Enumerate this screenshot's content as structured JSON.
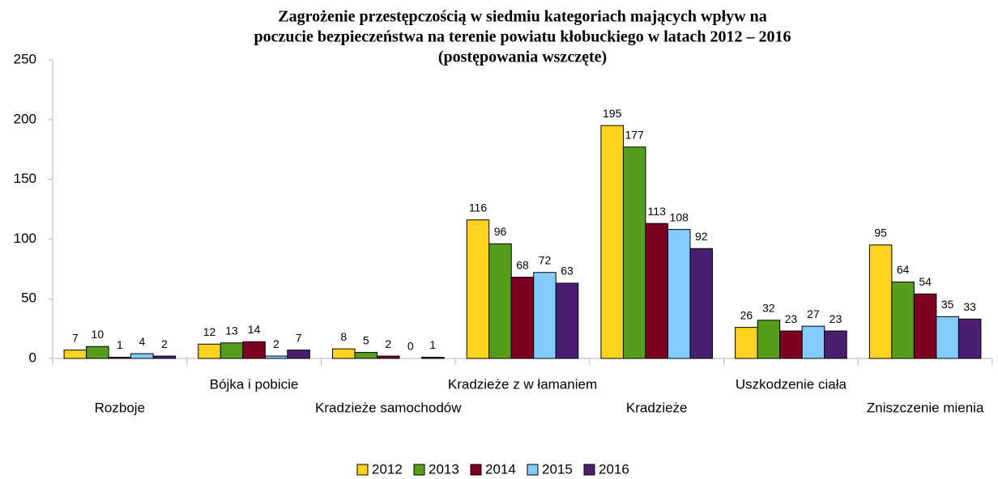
{
  "chart_data": {
    "type": "bar",
    "title": [
      "Zagrożenie przestępczością w siedmiu kategoriach mających wpływ na",
      "poczucie bezpieczeństwa na terenie powiatu kłobuckiego w latach 2012 – 2016",
      "(postępowania wszczęte)"
    ],
    "categories": [
      "Rozboje",
      "Bójka i pobicie",
      "Kradzieże samochodów",
      "Kradzieże z w łamaniem",
      "Kradzieże",
      "Uszkodzenie ciała",
      "Zniszczenie mienia"
    ],
    "series": [
      {
        "name": "2012",
        "color": "#ffd320",
        "values": [
          7,
          12,
          8,
          116,
          195,
          26,
          95
        ]
      },
      {
        "name": "2013",
        "color": "#579d1c",
        "values": [
          10,
          13,
          5,
          96,
          177,
          32,
          64
        ]
      },
      {
        "name": "2014",
        "color": "#7e0021",
        "values": [
          1,
          14,
          2,
          68,
          113,
          23,
          54
        ]
      },
      {
        "name": "2015",
        "color": "#83caff",
        "values": [
          4,
          2,
          0,
          72,
          108,
          27,
          35
        ]
      },
      {
        "name": "2016",
        "color": "#4b1f6f",
        "values": [
          2,
          7,
          1,
          63,
          92,
          23,
          33
        ]
      }
    ],
    "ylim": [
      0,
      250
    ],
    "yticks": [
      0,
      50,
      100,
      150,
      200,
      250
    ],
    "grid": false,
    "legend": "bottom"
  }
}
